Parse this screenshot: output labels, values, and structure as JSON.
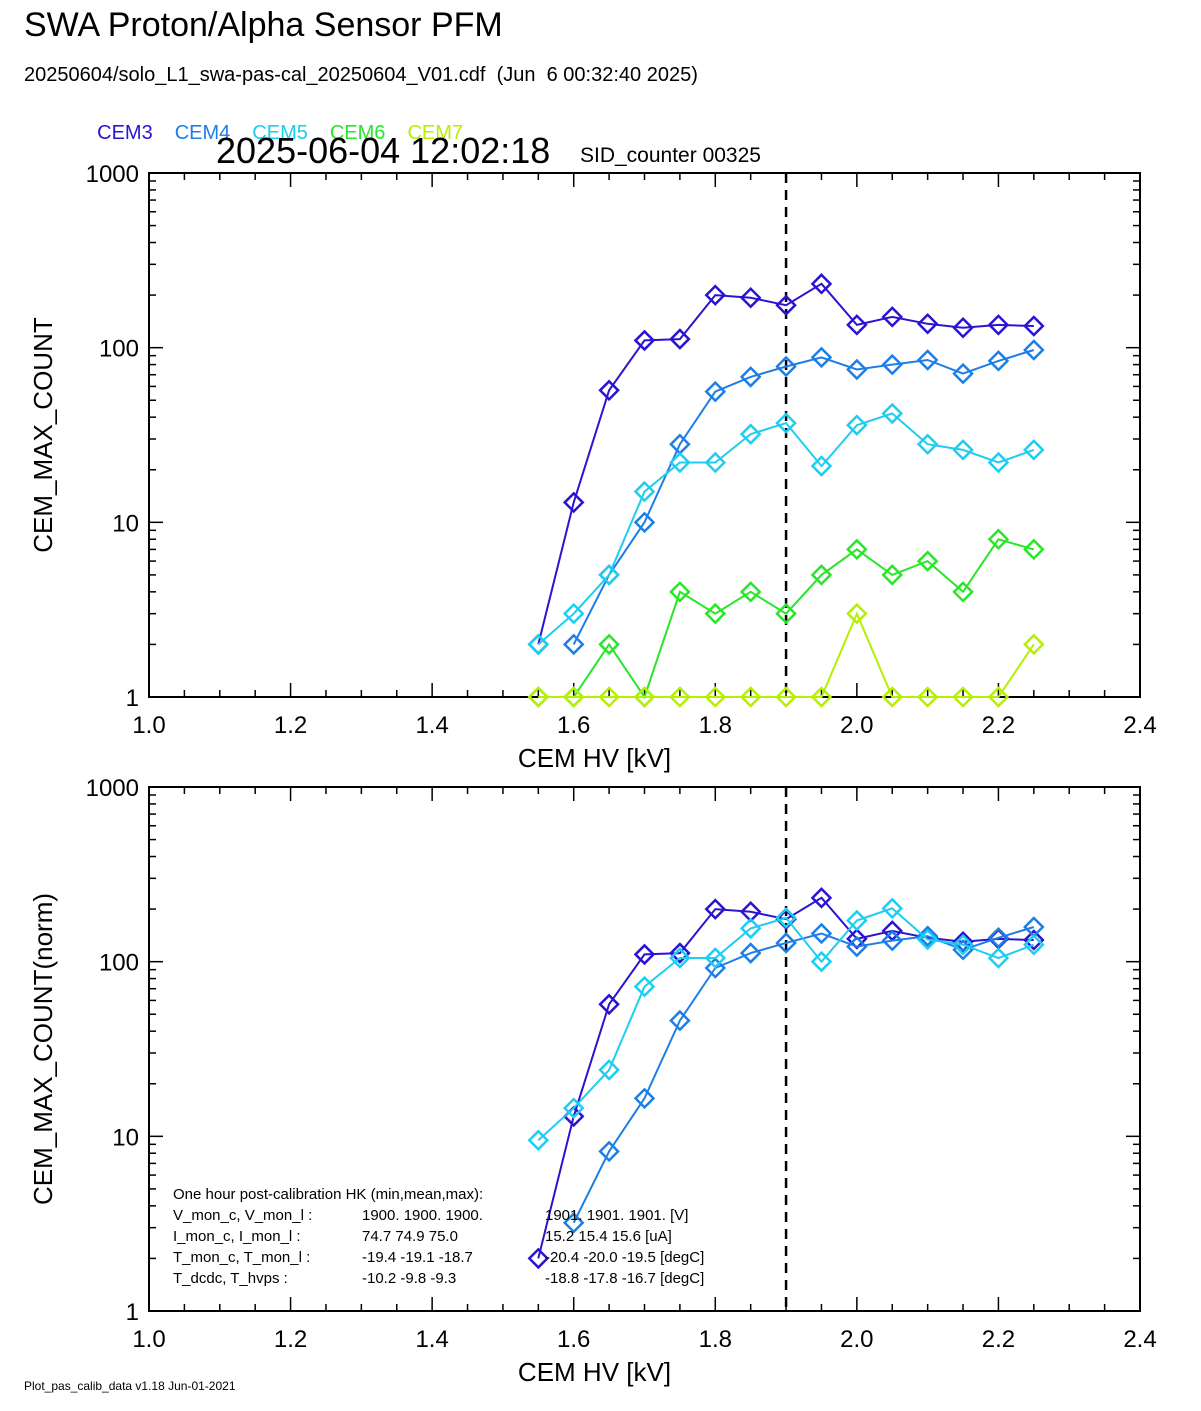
{
  "header": {
    "title": "SWA Proton/Alpha Sensor PFM",
    "file": "20250604/solo_L1_swa-pas-cal_20250604_V01.cdf  (Jun  6 00:32:40 2025)",
    "timestamp": "2025-06-04 12:02:18",
    "sid": "SID_counter 00325"
  },
  "legend": [
    {
      "name": "CEM3",
      "color": "#2a14d2"
    },
    {
      "name": "CEM4",
      "color": "#1e7ee6"
    },
    {
      "name": "CEM5",
      "color": "#1ecdf0"
    },
    {
      "name": "CEM6",
      "color": "#28e628"
    },
    {
      "name": "CEM7",
      "color": "#b4f000"
    }
  ],
  "hk": {
    "title": "One hour post-calibration HK (min,mean,max):",
    "rows": [
      {
        "label": "V_mon_c, V_mon_l :",
        "c": "1900.  1900.  1900.",
        "l": "1901.  1901.  1901.  [V]"
      },
      {
        "label": "I_mon_c,  I_mon_l :",
        "c": "74.7   74.9   75.0",
        "l": "15.2   15.4   15.6  [uA]"
      },
      {
        "label": "T_mon_c, T_mon_l :",
        "c": "-19.4  -19.1  -18.7",
        "l": "-20.4  -20.0  -19.5  [degC]"
      },
      {
        "label": "T_dcdc,    T_hvps :",
        "c": "-10.2   -9.8   -9.3",
        "l": "-18.8  -17.8  -16.7  [degC]"
      }
    ]
  },
  "footer": "Plot_pas_calib_data v1.18 Jun-01-2021",
  "chart_data": [
    {
      "type": "line",
      "xlabel": "CEM HV [kV]",
      "ylabel": "CEM_MAX_COUNT",
      "xlim": [
        1.0,
        2.4
      ],
      "ylim": [
        1,
        1000
      ],
      "yscale": "log",
      "xticks": [
        "1.0",
        "1.2",
        "1.4",
        "1.6",
        "1.8",
        "2.0",
        "2.2",
        "2.4"
      ],
      "yticks": [
        "1",
        "10",
        "100",
        "1000"
      ],
      "vline": 1.9,
      "series": [
        {
          "name": "CEM3",
          "color": "#2a14d2",
          "x": [
            1.55,
            1.6,
            1.65,
            1.7,
            1.75,
            1.8,
            1.85,
            1.9,
            1.95,
            2.0,
            2.05,
            2.1,
            2.15,
            2.2,
            2.25
          ],
          "y": [
            2,
            13,
            57,
            110,
            112,
            200,
            193,
            175,
            232,
            135,
            150,
            137,
            130,
            135,
            133
          ]
        },
        {
          "name": "CEM4",
          "color": "#1e7ee6",
          "x": [
            1.6,
            1.65,
            1.7,
            1.75,
            1.8,
            1.85,
            1.9,
            1.95,
            2.0,
            2.05,
            2.1,
            2.15,
            2.2,
            2.25
          ],
          "y": [
            2,
            5,
            10,
            28,
            56,
            68,
            78,
            88,
            75,
            80,
            85,
            71,
            84,
            97
          ]
        },
        {
          "name": "CEM5",
          "color": "#1ecdf0",
          "x": [
            1.55,
            1.6,
            1.65,
            1.7,
            1.75,
            1.8,
            1.85,
            1.9,
            1.95,
            2.0,
            2.05,
            2.1,
            2.15,
            2.2,
            2.25
          ],
          "y": [
            2,
            3,
            5,
            15,
            22,
            22,
            32,
            37,
            21,
            36,
            42,
            28,
            26,
            22,
            26
          ]
        },
        {
          "name": "CEM6",
          "color": "#28e628",
          "x": [
            1.55,
            1.6,
            1.65,
            1.7,
            1.75,
            1.8,
            1.85,
            1.9,
            1.95,
            2.0,
            2.05,
            2.1,
            2.15,
            2.2,
            2.25
          ],
          "y": [
            1,
            1,
            2,
            1,
            4,
            3,
            4,
            3,
            5,
            7,
            5,
            6,
            4,
            8,
            7
          ]
        },
        {
          "name": "CEM7",
          "color": "#b4f000",
          "x": [
            1.55,
            1.6,
            1.65,
            1.7,
            1.75,
            1.8,
            1.85,
            1.9,
            1.95,
            2.0,
            2.05,
            2.1,
            2.15,
            2.2,
            2.25
          ],
          "y": [
            1,
            1,
            1,
            1,
            1,
            1,
            1,
            1,
            1,
            3,
            1,
            1,
            1,
            1,
            2
          ]
        }
      ]
    },
    {
      "type": "line",
      "xlabel": "CEM HV [kV]",
      "ylabel": "CEM_MAX_COUNT(norm)",
      "xlim": [
        1.0,
        2.4
      ],
      "ylim": [
        1,
        1000
      ],
      "yscale": "log",
      "xticks": [
        "1.0",
        "1.2",
        "1.4",
        "1.6",
        "1.8",
        "2.0",
        "2.2",
        "2.4"
      ],
      "yticks": [
        "1",
        "10",
        "100",
        "1000"
      ],
      "vline": 1.9,
      "series": [
        {
          "name": "CEM3",
          "color": "#2a14d2",
          "x": [
            1.55,
            1.6,
            1.65,
            1.7,
            1.75,
            1.8,
            1.85,
            1.9,
            1.95,
            2.0,
            2.05,
            2.1,
            2.15,
            2.2,
            2.25
          ],
          "y": [
            2,
            13,
            57,
            110,
            112,
            200,
            193,
            175,
            232,
            135,
            150,
            137,
            130,
            135,
            133
          ]
        },
        {
          "name": "CEM4",
          "color": "#1e7ee6",
          "x": [
            1.6,
            1.65,
            1.7,
            1.75,
            1.8,
            1.85,
            1.9,
            1.95,
            2.0,
            2.05,
            2.1,
            2.15,
            2.2,
            2.25
          ],
          "y": [
            3.2,
            8.2,
            16.5,
            46,
            92,
            112,
            128,
            145,
            122,
            132,
            140,
            117,
            137,
            158
          ]
        },
        {
          "name": "CEM5",
          "color": "#1ecdf0",
          "x": [
            1.55,
            1.6,
            1.65,
            1.7,
            1.75,
            1.8,
            1.85,
            1.9,
            1.95,
            2.0,
            2.05,
            2.1,
            2.15,
            2.2,
            2.25
          ],
          "y": [
            9.5,
            14.5,
            24,
            72,
            105,
            105,
            155,
            178,
            100,
            172,
            202,
            134,
            125,
            105,
            125
          ]
        }
      ]
    }
  ]
}
